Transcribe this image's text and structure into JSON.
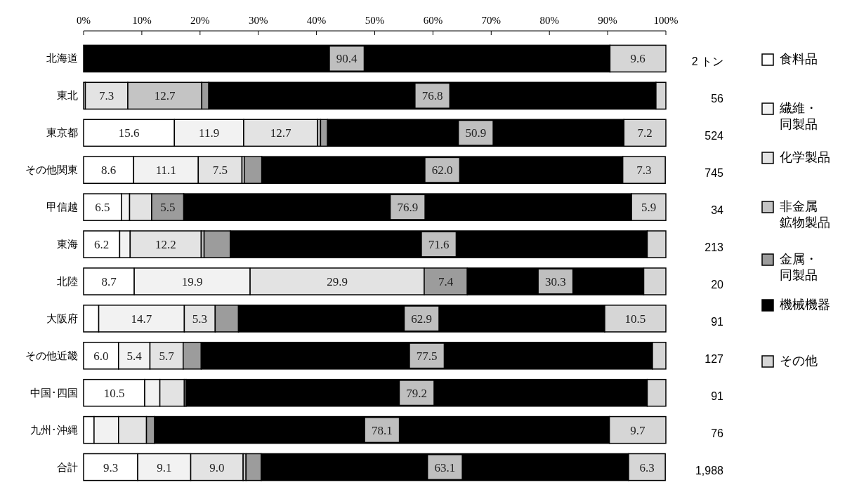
{
  "chart_data": {
    "type": "bar",
    "orientation": "horizontal",
    "stacked": true,
    "categories": [
      "北海道",
      "東北",
      "東京都",
      "その他関東",
      "甲信越",
      "東海",
      "北陸",
      "大阪府",
      "その他近畿",
      "中国･四国",
      "九州･沖縄",
      "合計"
    ],
    "xlim": [
      0,
      100
    ],
    "xticks": [
      {
        "value": 0,
        "label": "0%"
      },
      {
        "value": 10,
        "label": "10%"
      },
      {
        "value": 20,
        "label": "20%"
      },
      {
        "value": 30,
        "label": "30%"
      },
      {
        "value": 40,
        "label": "40%"
      },
      {
        "value": 50,
        "label": "50%"
      },
      {
        "value": 60,
        "label": "60%"
      },
      {
        "value": 70,
        "label": "70%"
      },
      {
        "value": 80,
        "label": "80%"
      },
      {
        "value": 90,
        "label": "90%"
      },
      {
        "value": 100,
        "label": "100%"
      }
    ],
    "legend": "right",
    "grid": false,
    "series": [
      {
        "name": "食料品",
        "color": "#ffffff",
        "values": [
          0,
          0.3,
          15.6,
          8.6,
          6.5,
          6.2,
          8.7,
          2.6,
          6.0,
          10.5,
          1.8,
          9.3
        ],
        "value_labels": [
          null,
          null,
          "15.6",
          "8.6",
          "6.5",
          "6.2",
          "8.7",
          null,
          "6.0",
          "10.5",
          null,
          "9.3"
        ]
      },
      {
        "name": "繊維・同製品",
        "color": "#f2f2f2",
        "values": [
          0,
          0,
          11.9,
          11.1,
          1.4,
          1.8,
          19.9,
          14.7,
          5.4,
          2.6,
          4.2,
          9.1
        ],
        "value_labels": [
          null,
          null,
          "11.9",
          "11.1",
          null,
          null,
          "19.9",
          "14.7",
          "5.4",
          null,
          null,
          "9.1"
        ]
      },
      {
        "name": "化学製品",
        "color": "#e3e3e3",
        "values": [
          0,
          7.3,
          12.7,
          7.5,
          3.8,
          12.2,
          29.9,
          5.3,
          5.7,
          4.2,
          4.8,
          9.0
        ],
        "value_labels": [
          null,
          "7.3",
          "12.7",
          "7.5",
          null,
          "12.2",
          "29.9",
          "5.3",
          "5.7",
          null,
          null,
          "9.0"
        ]
      },
      {
        "name": "非金属鉱物製品",
        "color": "#c4c4c4",
        "values": [
          0,
          12.7,
          0.5,
          0.4,
          0,
          0.5,
          0,
          0,
          0,
          0.3,
          0,
          0.5
        ],
        "value_labels": [
          null,
          "12.7",
          null,
          null,
          null,
          null,
          null,
          null,
          null,
          null,
          null,
          null
        ]
      },
      {
        "name": "金属・同製品",
        "color": "#9c9c9c",
        "values": [
          0,
          1.2,
          1.2,
          3.0,
          5.5,
          4.5,
          7.4,
          4.0,
          3.1,
          0,
          1.4,
          2.6
        ],
        "value_labels": [
          null,
          null,
          null,
          null,
          "5.5",
          null,
          "7.4",
          null,
          null,
          null,
          null,
          null
        ]
      },
      {
        "name": "機械機器",
        "color": "#000000",
        "values": [
          90.4,
          76.8,
          50.9,
          62.0,
          76.9,
          71.6,
          30.3,
          62.9,
          77.5,
          79.2,
          78.1,
          63.1
        ],
        "value_labels": [
          "90.4",
          "76.8",
          "50.9",
          "62.0",
          "76.9",
          "71.6",
          "30.3",
          "62.9",
          "77.5",
          "79.2",
          "78.1",
          "63.1"
        ]
      },
      {
        "name": "その他",
        "color": "#d6d6d6",
        "values": [
          9.6,
          1.7,
          7.2,
          7.3,
          5.9,
          3.2,
          3.8,
          10.5,
          2.3,
          3.2,
          9.7,
          6.3
        ],
        "value_labels": [
          "9.6",
          null,
          "7.2",
          "7.3",
          "5.9",
          null,
          null,
          "10.5",
          null,
          null,
          "9.7",
          "6.3"
        ]
      }
    ],
    "annotations": [
      "2 トン",
      "56",
      "524",
      "745",
      "34",
      "213",
      "20",
      "91",
      "127",
      "91",
      "76",
      "1,988"
    ]
  }
}
